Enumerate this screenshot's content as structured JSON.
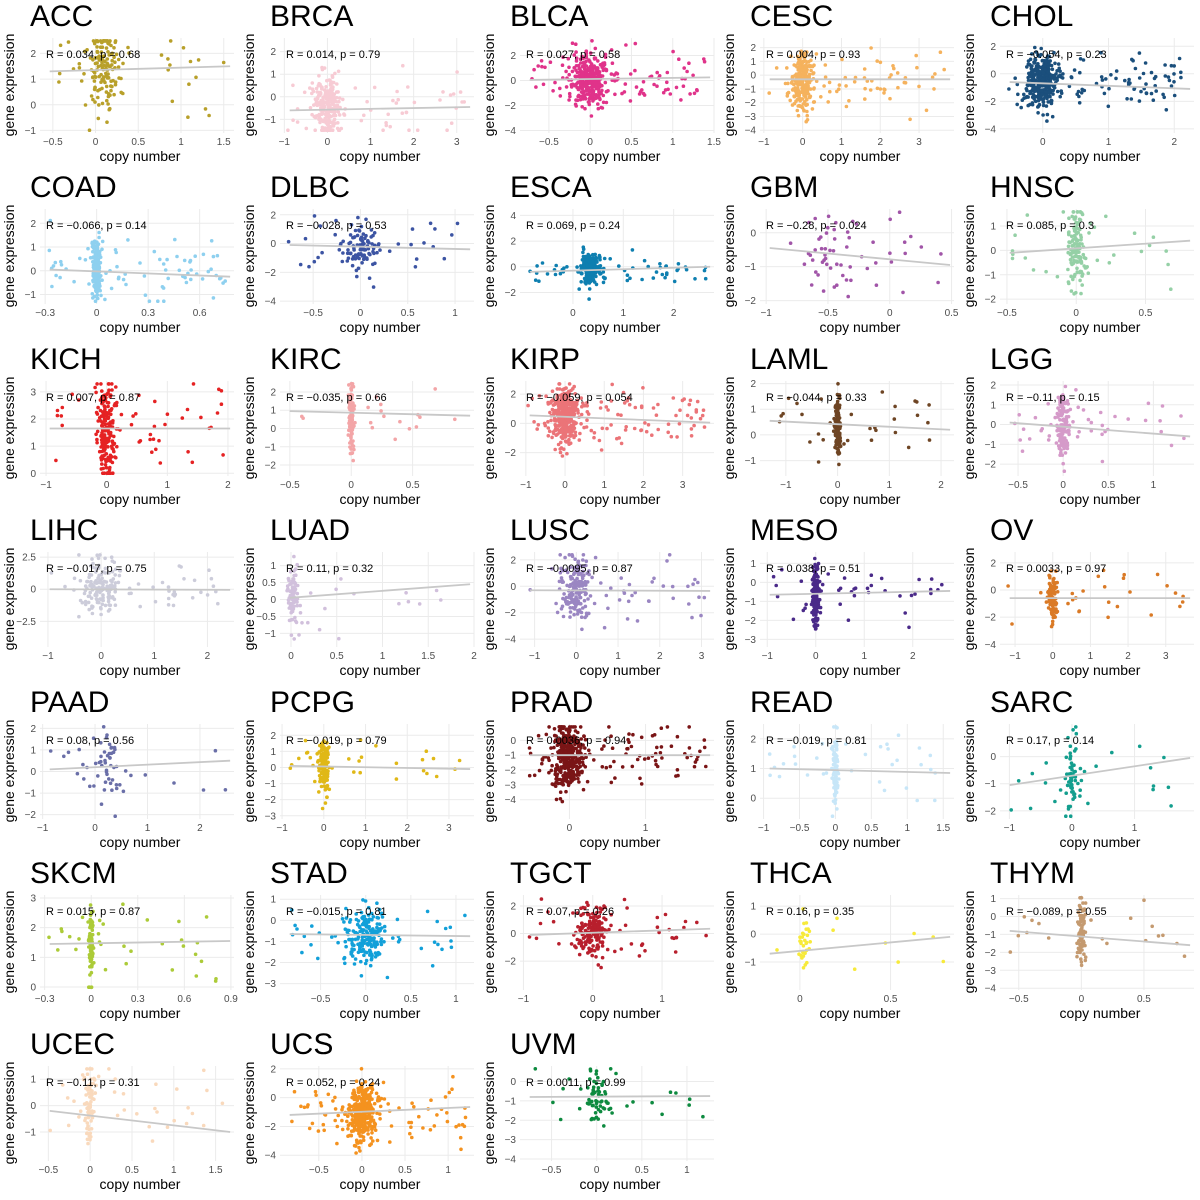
{
  "labels": {
    "xlabel": "copy number",
    "ylabel": "gene expression"
  },
  "style": {
    "fit_line_color": "#c8c8c8",
    "grid_color": "#ebebeb"
  },
  "chart_data": [
    {
      "type": "scatter",
      "title": "ACC",
      "stat": "R = 0.034, p = 0.68",
      "r": 0.034,
      "p": 0.68,
      "color": "#B8A02A",
      "xlim": [
        -0.65,
        1.62
      ],
      "ylim": [
        -1.1,
        2.6
      ],
      "xticks": [
        -0.5,
        0,
        0.5,
        1,
        1.5
      ],
      "yticks": [
        -1,
        0,
        1,
        2
      ],
      "n": 160,
      "fit": [
        1.3,
        1.5
      ],
      "xbody": [
        0.1,
        0.3
      ],
      "yspread": [
        1.3,
        0.9
      ]
    },
    {
      "type": "scatter",
      "title": "BRCA",
      "stat": "R = 0.014, p = 0.79",
      "r": 0.014,
      "p": 0.79,
      "color": "#F7CBD4",
      "xlim": [
        -1.1,
        3.4
      ],
      "ylim": [
        -1.6,
        2.6
      ],
      "xticks": [
        -1,
        0,
        1,
        2,
        3
      ],
      "yticks": [
        -1,
        0,
        1,
        2
      ],
      "n": 300,
      "fit": [
        -0.6,
        -0.45
      ],
      "xbody": [
        0,
        0.45
      ],
      "yspread": [
        -0.4,
        0.7
      ]
    },
    {
      "type": "scatter",
      "title": "BLCA",
      "stat": "R = 0.027, p = 0.58",
      "r": 0.027,
      "p": 0.58,
      "color": "#E0338A",
      "xlim": [
        -0.85,
        1.5
      ],
      "ylim": [
        -4.2,
        3.4
      ],
      "xticks": [
        -0.5,
        0,
        0.5,
        1,
        1.5
      ],
      "yticks": [
        -4,
        -2,
        0,
        2
      ],
      "n": 400,
      "fit": [
        0.05,
        0.25
      ],
      "xbody": [
        0,
        0.3
      ],
      "yspread": [
        0.1,
        1.1
      ]
    },
    {
      "type": "scatter",
      "title": "CESC",
      "stat": "R = 0.004, p = 0.93",
      "r": 0.004,
      "p": 0.93,
      "color": "#F5B25D",
      "xlim": [
        -1.1,
        3.9
      ],
      "ylim": [
        -4.2,
        2.7
      ],
      "xticks": [
        -1,
        0,
        1,
        2,
        3
      ],
      "yticks": [
        -4,
        -3,
        -2,
        -1,
        0,
        1,
        2
      ],
      "n": 300,
      "fit": [
        -0.3,
        -0.3
      ],
      "xbody": [
        0,
        0.4
      ],
      "yspread": [
        -0.3,
        1.0
      ]
    },
    {
      "type": "scatter",
      "title": "CHOL",
      "stat": "R = −0.054, p = 0.23",
      "r": -0.054,
      "p": 0.23,
      "color": "#1B4F7C",
      "xlim": [
        -0.65,
        2.3
      ],
      "ylim": [
        -4.3,
        2.6
      ],
      "xticks": [
        0,
        1,
        2
      ],
      "yticks": [
        -4,
        -2,
        0,
        2
      ],
      "n": 420,
      "fit": [
        -0.6,
        -1.1
      ],
      "xbody": [
        0,
        0.35
      ],
      "yspread": [
        -0.6,
        1.0
      ]
    },
    {
      "type": "scatter",
      "title": "COAD",
      "stat": "R = −0.066, p = 0.14",
      "r": -0.066,
      "p": 0.14,
      "color": "#8ED0EF",
      "xlim": [
        -0.33,
        0.8
      ],
      "ylim": [
        -1.4,
        2.6
      ],
      "xticks": [
        -0.3,
        0,
        0.3,
        0.6
      ],
      "yticks": [
        -1,
        0,
        1,
        2
      ],
      "n": 300,
      "fit": [
        0.05,
        -0.25
      ],
      "xbody": [
        0,
        0.03
      ],
      "yspread": [
        0.1,
        0.6
      ]
    },
    {
      "type": "scatter",
      "title": "DLBC",
      "stat": "R = −0.028, p = 0.53",
      "r": -0.028,
      "p": 0.53,
      "color": "#3C54A3",
      "xlim": [
        -0.85,
        1.2
      ],
      "ylim": [
        -4.2,
        2.4
      ],
      "xticks": [
        -0.5,
        0,
        0.5,
        1
      ],
      "yticks": [
        -4,
        -2,
        0,
        2
      ],
      "n": 120,
      "fit": [
        -0.1,
        -0.4
      ],
      "xbody": [
        0,
        0.3
      ],
      "yspread": [
        -0.2,
        0.9
      ]
    },
    {
      "type": "scatter",
      "title": "ESCA",
      "stat": "R = 0.069, p = 0.24",
      "r": 0.069,
      "p": 0.24,
      "color": "#0E7FB0",
      "xlim": [
        -1.05,
        2.8
      ],
      "ylim": [
        -2.9,
        4.5
      ],
      "xticks": [
        0,
        1,
        2
      ],
      "yticks": [
        -2,
        0,
        2,
        4
      ],
      "n": 250,
      "fit": [
        -0.4,
        0.0
      ],
      "xbody": [
        0.35,
        0.3
      ],
      "yspread": [
        -0.2,
        0.6
      ]
    },
    {
      "type": "scatter",
      "title": "GBM",
      "stat": "R = −0.28, p = 0.024",
      "r": -0.28,
      "p": 0.024,
      "color": "#A155A8",
      "xlim": [
        -1.05,
        0.52
      ],
      "ylim": [
        -2.1,
        0.7
      ],
      "xticks": [
        -1,
        -0.5,
        0,
        0.5
      ],
      "yticks": [
        -2,
        -1,
        0
      ],
      "n": 60,
      "fit": [
        -0.45,
        -0.95
      ],
      "xbody": [
        -0.45,
        0.35
      ],
      "yspread": [
        -0.6,
        0.55
      ]
    },
    {
      "type": "scatter",
      "title": "HNSC",
      "stat": "R = 0.085, p = 0.3",
      "r": 0.085,
      "p": 0.3,
      "color": "#95D0A6",
      "xlim": [
        -0.55,
        0.85
      ],
      "ylim": [
        -2.2,
        1.7
      ],
      "xticks": [
        -0.5,
        0,
        0.5
      ],
      "yticks": [
        -2,
        -1,
        0,
        1
      ],
      "n": 150,
      "fit": [
        -0.1,
        0.4
      ],
      "xbody": [
        0,
        0.1
      ],
      "yspread": [
        0.1,
        0.8
      ]
    },
    {
      "type": "scatter",
      "title": "KICH",
      "stat": "R = 0.007, p = 0.87",
      "r": 0.007,
      "p": 0.87,
      "color": "#E52223",
      "xlim": [
        -1.1,
        2.1
      ],
      "ylim": [
        -0.1,
        3.4
      ],
      "xticks": [
        -1,
        0,
        1,
        2
      ],
      "yticks": [
        0,
        1,
        2,
        3
      ],
      "n": 220,
      "fit": [
        1.65,
        1.65
      ],
      "xbody": [
        0,
        0.2
      ],
      "yspread": [
        1.6,
        0.8
      ]
    },
    {
      "type": "scatter",
      "title": "KIRC",
      "stat": "R = −0.035, p = 0.66",
      "r": -0.035,
      "p": 0.66,
      "color": "#F3A5A7",
      "xlim": [
        -0.58,
        1.0
      ],
      "ylim": [
        -2.6,
        2.6
      ],
      "xticks": [
        -0.5,
        0,
        0.5
      ],
      "yticks": [
        -2,
        -1,
        0,
        1,
        2
      ],
      "n": 130,
      "fit": [
        0.95,
        0.7
      ],
      "xbody": [
        0,
        0.03
      ],
      "yspread": [
        0.4,
        1.0
      ]
    },
    {
      "type": "scatter",
      "title": "KIRP",
      "stat": "R = −0.059, p = 0.054",
      "r": -0.059,
      "p": 0.054,
      "color": "#EB7478",
      "xlim": [
        -1.15,
        3.8
      ],
      "ylim": [
        -3.6,
        2.9
      ],
      "xticks": [
        -1,
        0,
        1,
        2,
        3
      ],
      "yticks": [
        -2,
        0,
        2
      ],
      "n": 450,
      "fit": [
        0.55,
        0.05
      ],
      "xbody": [
        0,
        0.45
      ],
      "yspread": [
        0.5,
        1.0
      ]
    },
    {
      "type": "scatter",
      "title": "LAML",
      "stat": "R = −0.044, p = 0.33",
      "r": -0.044,
      "p": 0.33,
      "color": "#6E4524",
      "xlim": [
        -1.5,
        2.25
      ],
      "ylim": [
        -1.6,
        2.1
      ],
      "xticks": [
        -1,
        0,
        1,
        2
      ],
      "yticks": [
        -1,
        0,
        1,
        2
      ],
      "n": 160,
      "fit": [
        0.55,
        0.2
      ],
      "xbody": [
        0,
        0.08
      ],
      "yspread": [
        0.4,
        0.6
      ]
    },
    {
      "type": "scatter",
      "title": "LGG",
      "stat": "R = −0.11, p = 0.15",
      "r": -0.11,
      "p": 0.15,
      "color": "#D59AC9",
      "xlim": [
        -0.7,
        1.45
      ],
      "ylim": [
        -2.6,
        2.2
      ],
      "xticks": [
        -0.5,
        0,
        0.5,
        1
      ],
      "yticks": [
        -2,
        -1,
        0,
        1,
        2
      ],
      "n": 180,
      "fit": [
        0.1,
        -0.6
      ],
      "xbody": [
        0,
        0.1
      ],
      "yspread": [
        -0.1,
        0.8
      ]
    },
    {
      "type": "scatter",
      "title": "LIHC",
      "stat": "R = −0.017, p = 0.75",
      "r": -0.017,
      "p": 0.75,
      "color": "#CCCCDA",
      "xlim": [
        -1.15,
        2.5
      ],
      "ylim": [
        -4.5,
        2.9
      ],
      "xticks": [
        -1,
        0,
        1,
        2
      ],
      "yticks": [
        -2.5,
        0,
        2.5
      ],
      "n": 180,
      "fit": [
        0,
        -0.05
      ],
      "xbody": [
        0,
        0.45
      ],
      "yspread": [
        0.2,
        1.1
      ]
    },
    {
      "type": "scatter",
      "title": "LUAD",
      "stat": "R = 0.11, p = 0.32",
      "r": 0.11,
      "p": 0.32,
      "color": "#D1C0DC",
      "xlim": [
        -0.12,
        2.0
      ],
      "ylim": [
        -1.4,
        1.4
      ],
      "xticks": [
        0,
        0.5,
        1,
        1.5,
        2
      ],
      "yticks": [
        -1,
        -0.5,
        0,
        0.5,
        1
      ],
      "n": 90,
      "fit": [
        0.05,
        0.45
      ],
      "xbody": [
        0.02,
        0.08
      ],
      "yspread": [
        0.1,
        0.5
      ]
    },
    {
      "type": "scatter",
      "title": "LUSC",
      "stat": "R = −0.0095, p = 0.87",
      "r": -0.0095,
      "p": 0.87,
      "color": "#9A86C2",
      "xlim": [
        -1.35,
        3.3
      ],
      "ylim": [
        -4.6,
        2.6
      ],
      "xticks": [
        -1,
        0,
        1,
        2,
        3
      ],
      "yticks": [
        -4,
        -2,
        0,
        2
      ],
      "n": 200,
      "fit": [
        -0.3,
        -0.35
      ],
      "xbody": [
        0,
        0.5
      ],
      "yspread": [
        -0.1,
        1.1
      ]
    },
    {
      "type": "scatter",
      "title": "MESO",
      "stat": "R = 0.038, p = 0.51",
      "r": 0.038,
      "p": 0.51,
      "color": "#4A2A89",
      "xlim": [
        -1.15,
        2.85
      ],
      "ylim": [
        -3.4,
        1.6
      ],
      "xticks": [
        -1,
        0,
        1,
        2
      ],
      "yticks": [
        -3,
        -2,
        -1,
        0,
        1
      ],
      "n": 180,
      "fit": [
        -0.65,
        -0.45
      ],
      "xbody": [
        0,
        0.1
      ],
      "yspread": [
        -0.6,
        0.8
      ]
    },
    {
      "type": "scatter",
      "title": "OV",
      "stat": "R = 0.0033, p = 0.97",
      "r": 0.0033,
      "p": 0.97,
      "color": "#DA7A26",
      "xlim": [
        -1.4,
        3.75
      ],
      "ylim": [
        -4.2,
        2.8
      ],
      "xticks": [
        -1,
        0,
        1,
        2,
        3
      ],
      "yticks": [
        -4,
        -2,
        0,
        2
      ],
      "n": 120,
      "fit": [
        -0.6,
        -0.6
      ],
      "xbody": [
        0,
        0.2
      ],
      "yspread": [
        -0.6,
        0.9
      ]
    },
    {
      "type": "scatter",
      "title": "PAAD",
      "stat": "R = 0.08, p = 0.56",
      "r": 0.08,
      "p": 0.56,
      "color": "#6A6FA8",
      "xlim": [
        -1.05,
        2.65
      ],
      "ylim": [
        -2.2,
        2.2
      ],
      "xticks": [
        -1,
        0,
        1,
        2
      ],
      "yticks": [
        -2,
        -1,
        0,
        1,
        2
      ],
      "n": 60,
      "fit": [
        0.1,
        0.5
      ],
      "xbody": [
        0.2,
        0.5
      ],
      "yspread": [
        0.2,
        0.9
      ]
    },
    {
      "type": "scatter",
      "title": "PCPG",
      "stat": "R = −0.019, p = 0.79",
      "r": -0.019,
      "p": 0.79,
      "color": "#E0B817",
      "xlim": [
        -1.05,
        3.6
      ],
      "ylim": [
        -3.2,
        2.7
      ],
      "xticks": [
        -1,
        0,
        1,
        2,
        3
      ],
      "yticks": [
        -3,
        -2,
        -1,
        0,
        1,
        2
      ],
      "n": 170,
      "fit": [
        0.1,
        -0.1
      ],
      "xbody": [
        0,
        0.15
      ],
      "yspread": [
        0.1,
        0.8
      ]
    },
    {
      "type": "scatter",
      "title": "PRAD",
      "stat": "R = 0.0036, p = 0.94",
      "r": 0.0036,
      "p": 0.94,
      "color": "#7A1516",
      "xlim": [
        -0.65,
        1.9
      ],
      "ylim": [
        -5.3,
        1.1
      ],
      "xticks": [
        0,
        1
      ],
      "yticks": [
        -4,
        -3,
        -2,
        -1,
        0
      ],
      "n": 420,
      "fit": [
        -1.0,
        -1.0
      ],
      "xbody": [
        0,
        0.3
      ],
      "yspread": [
        -1.1,
        1.1
      ]
    },
    {
      "type": "scatter",
      "title": "READ",
      "stat": "R = −0.019, p = 0.81",
      "r": -0.019,
      "p": 0.81,
      "color": "#C7E6F8",
      "xlim": [
        -1.05,
        1.65
      ],
      "ylim": [
        -0.7,
        2.5
      ],
      "xticks": [
        -1,
        -0.5,
        0,
        0.5,
        1,
        1.5
      ],
      "yticks": [
        0,
        1,
        2
      ],
      "n": 130,
      "fit": [
        1.0,
        0.85
      ],
      "xbody": [
        0,
        0.05
      ],
      "yspread": [
        1.0,
        0.6
      ]
    },
    {
      "type": "scatter",
      "title": "SARC",
      "stat": "R = 0.17, p = 0.14",
      "r": 0.17,
      "p": 0.14,
      "color": "#139E8E",
      "xlim": [
        -1.15,
        1.95
      ],
      "ylim": [
        -2.3,
        1.2
      ],
      "xticks": [
        -1,
        0,
        1
      ],
      "yticks": [
        -2,
        -1,
        0
      ],
      "n": 80,
      "fit": [
        -1.05,
        -0.05
      ],
      "xbody": [
        0,
        0.15
      ],
      "yspread": [
        -0.7,
        0.7
      ]
    },
    {
      "type": "scatter",
      "title": "SKCM",
      "stat": "R = 0.015, p = 0.87",
      "r": 0.015,
      "p": 0.87,
      "color": "#ACCB38",
      "xlim": [
        -0.33,
        0.92
      ],
      "ylim": [
        -0.1,
        3.1
      ],
      "xticks": [
        -0.3,
        0,
        0.3,
        0.6,
        0.9
      ],
      "yticks": [
        0,
        1,
        2,
        3
      ],
      "n": 120,
      "fit": [
        1.45,
        1.55
      ],
      "xbody": [
        0,
        0.02
      ],
      "yspread": [
        1.5,
        0.6
      ]
    },
    {
      "type": "scatter",
      "title": "STAD",
      "stat": "R = −0.015, p = 0.81",
      "r": -0.015,
      "p": 0.81,
      "color": "#12A0D9",
      "xlim": [
        -0.95,
        1.2
      ],
      "ylim": [
        -3.3,
        1.2
      ],
      "xticks": [
        -0.5,
        0,
        0.5,
        1
      ],
      "yticks": [
        -3,
        -2,
        -1,
        0,
        1
      ],
      "n": 220,
      "fit": [
        -0.65,
        -0.75
      ],
      "xbody": [
        0,
        0.3
      ],
      "yspread": [
        -0.8,
        0.7
      ]
    },
    {
      "type": "scatter",
      "title": "TGCT",
      "stat": "R = 0.07, p = 0.26",
      "r": 0.07,
      "p": 0.26,
      "color": "#B81F2D",
      "xlim": [
        -1.05,
        1.75
      ],
      "ylim": [
        -4.1,
        2.8
      ],
      "xticks": [
        -1,
        0,
        1
      ],
      "yticks": [
        -2,
        0,
        2
      ],
      "n": 200,
      "fit": [
        -0.1,
        0.35
      ],
      "xbody": [
        0,
        0.35
      ],
      "yspread": [
        0.1,
        0.9
      ]
    },
    {
      "type": "scatter",
      "title": "THCA",
      "stat": "R = 0.16, p = 0.35",
      "r": 0.16,
      "p": 0.35,
      "color": "#F7EA3A",
      "xlim": [
        -0.22,
        0.85
      ],
      "ylim": [
        -2.0,
        1.4
      ],
      "xticks": [
        0,
        0.5
      ],
      "yticks": [
        -1,
        0,
        1
      ],
      "n": 40,
      "fit": [
        -0.7,
        -0.1
      ],
      "xbody": [
        0.02,
        0.05
      ],
      "yspread": [
        -0.4,
        0.6
      ]
    },
    {
      "type": "scatter",
      "title": "THYM",
      "stat": "R = −0.089, p = 0.55",
      "r": -0.089,
      "p": 0.55,
      "color": "#C49A70",
      "xlim": [
        -0.65,
        0.9
      ],
      "ylim": [
        -4.1,
        1.2
      ],
      "xticks": [
        -0.5,
        0,
        0.5
      ],
      "yticks": [
        -4,
        -3,
        -2,
        -1,
        0,
        1
      ],
      "n": 100,
      "fit": [
        -0.8,
        -1.6
      ],
      "xbody": [
        0,
        0.05
      ],
      "yspread": [
        -1.0,
        0.9
      ]
    },
    {
      "type": "scatter",
      "title": "UCEC",
      "stat": "R = −0.11, p = 0.31",
      "r": -0.11,
      "p": 0.31,
      "color": "#F9D9BC",
      "xlim": [
        -0.6,
        1.72
      ],
      "ylim": [
        -2.1,
        1.5
      ],
      "xticks": [
        -0.5,
        0,
        0.5,
        1,
        1.5
      ],
      "yticks": [
        -1,
        0,
        1
      ],
      "n": 110,
      "fit": [
        -0.2,
        -1.0
      ],
      "xbody": [
        0,
        0.1
      ],
      "yspread": [
        -0.1,
        0.7
      ]
    },
    {
      "type": "scatter",
      "title": "UCS",
      "stat": "R = 0.052, p = 0.24",
      "r": 0.052,
      "p": 0.24,
      "color": "#F4921F",
      "xlim": [
        -0.95,
        1.3
      ],
      "ylim": [
        -4.4,
        2.2
      ],
      "xticks": [
        -0.5,
        0,
        0.5,
        1
      ],
      "yticks": [
        -4,
        -2,
        0,
        2
      ],
      "n": 400,
      "fit": [
        -1.2,
        -0.65
      ],
      "xbody": [
        0,
        0.25
      ],
      "yspread": [
        -1.1,
        1.0
      ]
    },
    {
      "type": "scatter",
      "title": "UVM",
      "stat": "R = 0.0011, p = 0.99",
      "r": 0.0011,
      "p": 0.99,
      "color": "#0D8A3F",
      "xlim": [
        -0.85,
        1.3
      ],
      "ylim": [
        -4.1,
        0.8
      ],
      "xticks": [
        -0.5,
        0,
        0.5,
        1
      ],
      "yticks": [
        -4,
        -3,
        -2,
        -1,
        0
      ],
      "n": 80,
      "fit": [
        -0.8,
        -0.75
      ],
      "xbody": [
        0,
        0.2
      ],
      "yspread": [
        -0.8,
        0.8
      ]
    }
  ]
}
